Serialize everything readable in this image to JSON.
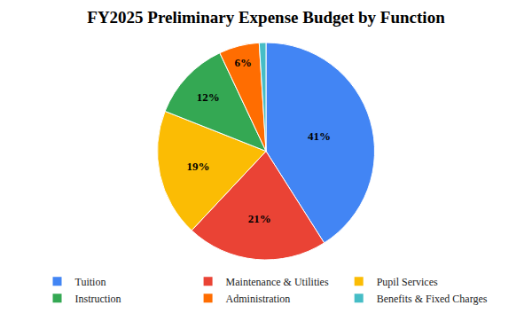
{
  "chart_data": {
    "type": "pie",
    "title": "FY2025 Preliminary Expense Budget by Function",
    "categories": [
      "Tuition",
      "Maintenance & Utilities",
      "Pupil Services",
      "Instruction",
      "Administration",
      "Benefits & Fixed Charges"
    ],
    "values": [
      41,
      21,
      19,
      12,
      6,
      1
    ],
    "value_labels": [
      "41%",
      "21%",
      "19%",
      "12%",
      "6%",
      null
    ],
    "colors": [
      "#4285f4",
      "#ea4335",
      "#fbbc04",
      "#34a853",
      "#ff6d01",
      "#46bdc6"
    ],
    "data_labels": true,
    "legend": "bottom"
  }
}
